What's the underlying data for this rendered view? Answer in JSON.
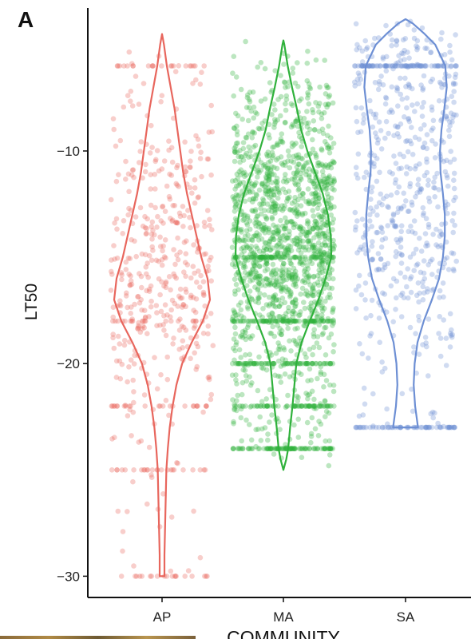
{
  "chart_data": {
    "type": "violin",
    "panel_label": "A",
    "xlabel": "COMMUNITY",
    "ylabel": "LT50",
    "categories": [
      "AP",
      "MA",
      "SA"
    ],
    "colors": [
      "#e8665d",
      "#2fb13b",
      "#6d8fd4"
    ],
    "ylim": [
      -31,
      -3.2
    ],
    "yticks": [
      -10,
      -20,
      -30
    ],
    "ytick_labels": [
      "−10",
      "−20",
      "−30"
    ],
    "series": [
      {
        "name": "AP",
        "min": -30,
        "max": -4.5,
        "density_profile": [
          [
            -30,
            0.05
          ],
          [
            -29,
            0.05
          ],
          [
            -28,
            0.06
          ],
          [
            -27,
            0.07
          ],
          [
            -26,
            0.08
          ],
          [
            -25,
            0.09
          ],
          [
            -24,
            0.12
          ],
          [
            -23,
            0.16
          ],
          [
            -22,
            0.22
          ],
          [
            -21,
            0.3
          ],
          [
            -20,
            0.42
          ],
          [
            -19,
            0.62
          ],
          [
            -18,
            0.85
          ],
          [
            -17,
            1.0
          ],
          [
            -16,
            0.95
          ],
          [
            -15,
            0.82
          ],
          [
            -14,
            0.72
          ],
          [
            -13,
            0.62
          ],
          [
            -12,
            0.52
          ],
          [
            -11,
            0.44
          ],
          [
            -10,
            0.38
          ],
          [
            -9,
            0.32
          ],
          [
            -8,
            0.26
          ],
          [
            -7,
            0.18
          ],
          [
            -6,
            0.1
          ],
          [
            -5,
            0.04
          ],
          [
            -4.5,
            0.0
          ]
        ],
        "dense_values": [
          -6,
          -18,
          -22,
          -25,
          -30
        ]
      },
      {
        "name": "MA",
        "min": -25,
        "max": -4.8,
        "density_profile": [
          [
            -25,
            0.0
          ],
          [
            -24.5,
            0.06
          ],
          [
            -24,
            0.1
          ],
          [
            -23,
            0.14
          ],
          [
            -22,
            0.19
          ],
          [
            -21,
            0.23
          ],
          [
            -20,
            0.27
          ],
          [
            -19,
            0.38
          ],
          [
            -18,
            0.55
          ],
          [
            -17,
            0.73
          ],
          [
            -16,
            0.88
          ],
          [
            -15,
            1.0
          ],
          [
            -14,
            0.99
          ],
          [
            -13,
            0.93
          ],
          [
            -12,
            0.82
          ],
          [
            -11,
            0.66
          ],
          [
            -10,
            0.5
          ],
          [
            -9,
            0.37
          ],
          [
            -8,
            0.28
          ],
          [
            -7,
            0.18
          ],
          [
            -6,
            0.09
          ],
          [
            -5,
            0.02
          ],
          [
            -4.8,
            0.0
          ]
        ],
        "dense_values": [
          -15,
          -18,
          -20,
          -22,
          -24
        ]
      },
      {
        "name": "SA",
        "min": -23,
        "max": -3.8,
        "density_profile": [
          [
            -23,
            0.26
          ],
          [
            -22,
            0.2
          ],
          [
            -21,
            0.17
          ],
          [
            -20,
            0.19
          ],
          [
            -19,
            0.25
          ],
          [
            -18,
            0.38
          ],
          [
            -17,
            0.55
          ],
          [
            -16,
            0.7
          ],
          [
            -15,
            0.78
          ],
          [
            -14,
            0.82
          ],
          [
            -13,
            0.82
          ],
          [
            -12,
            0.78
          ],
          [
            -11,
            0.73
          ],
          [
            -10,
            0.72
          ],
          [
            -9,
            0.75
          ],
          [
            -8,
            0.81
          ],
          [
            -7,
            0.86
          ],
          [
            -6,
            0.83
          ],
          [
            -5,
            0.62
          ],
          [
            -4.5,
            0.4
          ],
          [
            -4,
            0.15
          ],
          [
            -3.8,
            0.0
          ]
        ],
        "dense_values": [
          -6,
          -23
        ]
      }
    ]
  }
}
